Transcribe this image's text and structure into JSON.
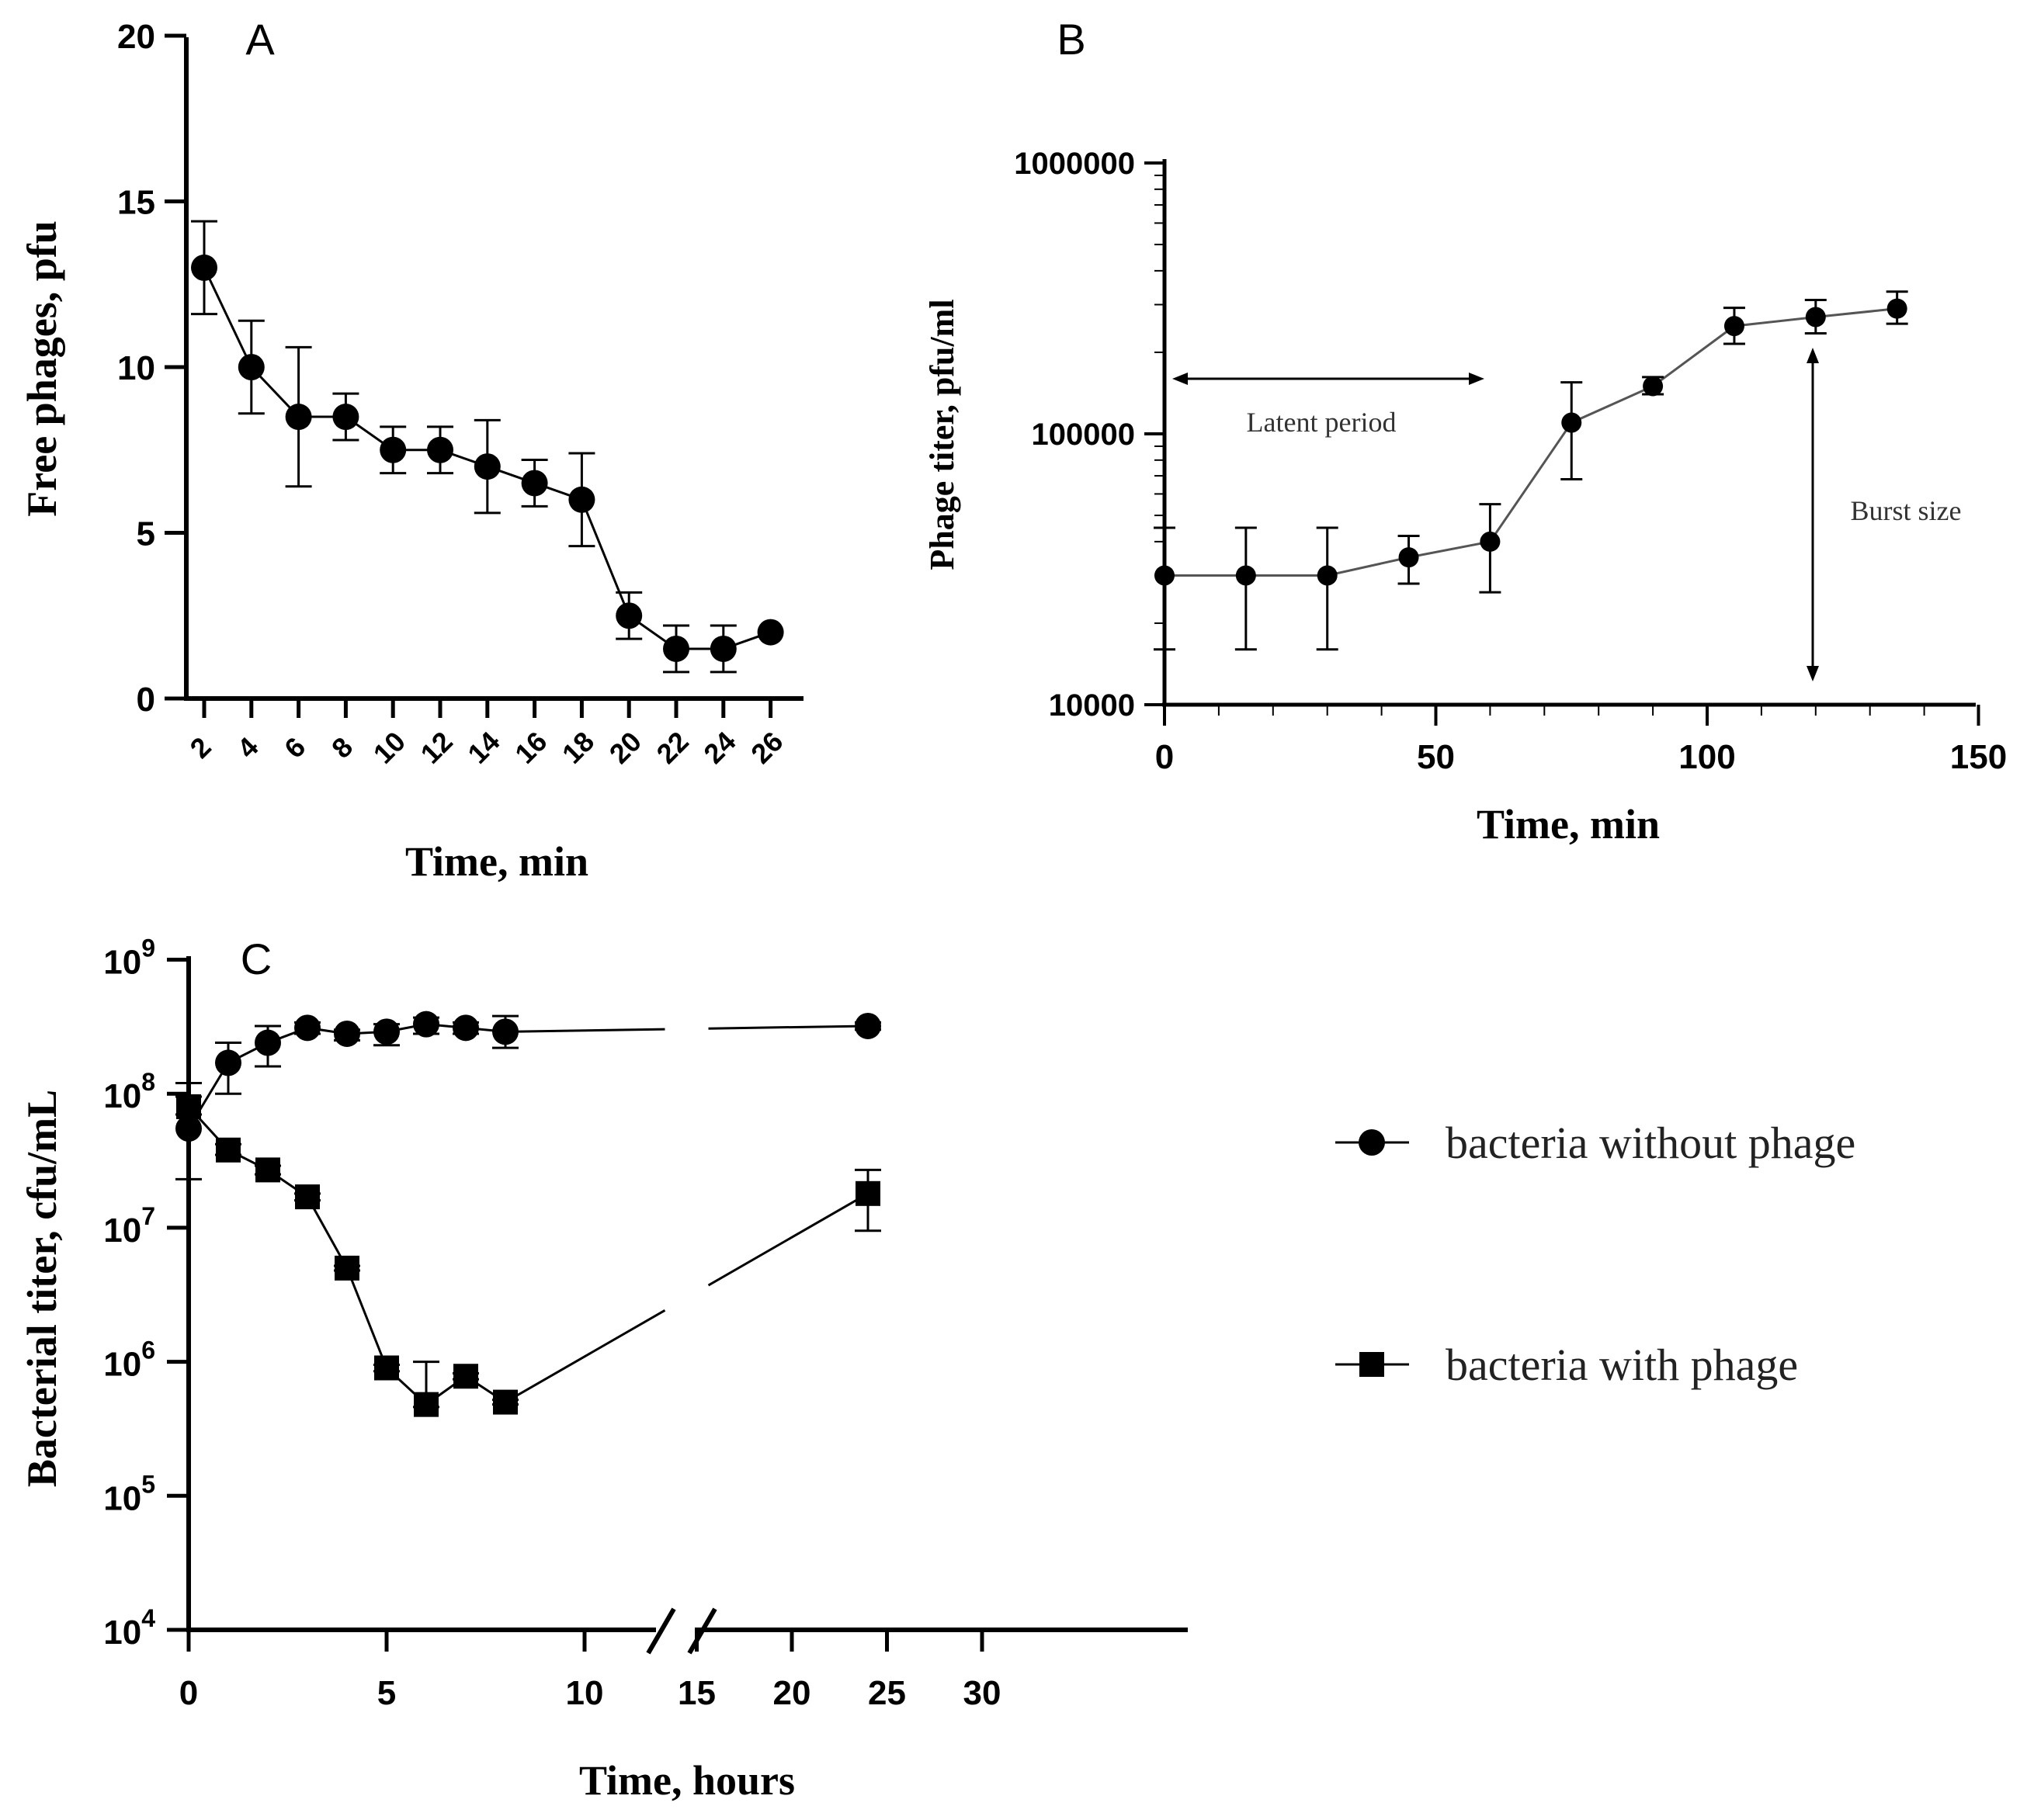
{
  "chart_data": [
    {
      "panel": "A",
      "type": "line",
      "title": "A",
      "xlabel": "Time, min",
      "ylabel": "Free phages, pfu",
      "ylim": [
        0,
        20
      ],
      "yticks": [
        "0",
        "5",
        "10",
        "15",
        "20"
      ],
      "xticks": [
        "2",
        "4",
        "6",
        "8",
        "10",
        "12",
        "14",
        "16",
        "18",
        "20",
        "22",
        "24",
        "26"
      ],
      "series": [
        {
          "name": "Free phages",
          "marker": "circle",
          "x": [
            2,
            4,
            6,
            8,
            10,
            12,
            14,
            16,
            18,
            20,
            22,
            24,
            26
          ],
          "values": [
            13,
            10,
            8.5,
            8.5,
            7.5,
            7.5,
            7,
            6.5,
            6,
            2.5,
            1.5,
            1.5,
            2
          ],
          "error": [
            1.4,
            1.4,
            2.1,
            0.7,
            0.7,
            0.7,
            1.4,
            0.7,
            1.4,
            0.7,
            0.7,
            0.7,
            0
          ]
        }
      ]
    },
    {
      "panel": "B",
      "type": "line",
      "title": "B",
      "xlabel": "Time, min",
      "ylabel": "Phage titer, pfu/ml",
      "yscale": "log",
      "xlim": [
        0,
        150
      ],
      "ylim": [
        10000,
        1000000
      ],
      "xticks": [
        "0",
        "50",
        "100",
        "150"
      ],
      "yticks": [
        "10000",
        "100000",
        "1000000"
      ],
      "annotations": [
        "Latent period",
        "Burst size"
      ],
      "series": [
        {
          "name": "Phage titer",
          "marker": "circle",
          "x": [
            0,
            15,
            30,
            45,
            60,
            75,
            90,
            105,
            120,
            135
          ],
          "values": [
            30000,
            30000,
            30000,
            35000,
            40000,
            110000,
            150000,
            250000,
            270000,
            290000
          ],
          "err_low": [
            16000,
            16000,
            16000,
            28000,
            26000,
            68000,
            140000,
            215000,
            235000,
            255000
          ],
          "err_high": [
            45000,
            45000,
            45000,
            42000,
            55000,
            155000,
            162000,
            292000,
            312000,
            335000
          ]
        }
      ]
    },
    {
      "panel": "C",
      "type": "line",
      "title": "C",
      "xlabel": "Time, hours",
      "ylabel": "Bacterial titer, cfu/mL",
      "yscale": "log",
      "ylim": [
        10000,
        1000000000
      ],
      "xticks": [
        "0",
        "5",
        "10",
        "15",
        "20",
        "25",
        "30"
      ],
      "ytick_base": "10",
      "ytick_exponents": [
        "4",
        "5",
        "6",
        "7",
        "8",
        "9"
      ],
      "x_axis_break": [
        11.5,
        13.5
      ],
      "series": [
        {
          "name": "bacteria without phage",
          "marker": "circle",
          "x": [
            0,
            1,
            2,
            3,
            4,
            5,
            6,
            7,
            8,
            24
          ],
          "values": [
            55000000,
            170000000,
            240000000,
            310000000,
            280000000,
            290000000,
            330000000,
            310000000,
            290000000,
            320000000
          ],
          "err_low": [
            23000000,
            100000000,
            160000000,
            280000000,
            250000000,
            230000000,
            280000000,
            280000000,
            220000000,
            300000000
          ],
          "err_high": [
            120000000,
            240000000,
            320000000,
            340000000,
            300000000,
            330000000,
            370000000,
            340000000,
            380000000,
            340000000
          ]
        },
        {
          "name": "bacteria with phage",
          "marker": "square",
          "x": [
            0,
            1,
            2,
            3,
            4,
            5,
            6,
            7,
            8,
            24
          ],
          "values": [
            80000000,
            38000000,
            27000000,
            17000000,
            5000000,
            900000,
            480000,
            780000,
            500000,
            18000000
          ],
          "err_low": [
            70000000,
            35000000,
            25000000,
            16000000,
            4800000,
            850000,
            460000,
            740000,
            480000,
            9500000
          ],
          "err_high": [
            95000000,
            42000000,
            29000000,
            18000000,
            5200000,
            950000,
            1000000,
            820000,
            520000,
            27000000
          ]
        }
      ],
      "legend": [
        "bacteria without phage",
        "bacteria with phage"
      ]
    }
  ]
}
